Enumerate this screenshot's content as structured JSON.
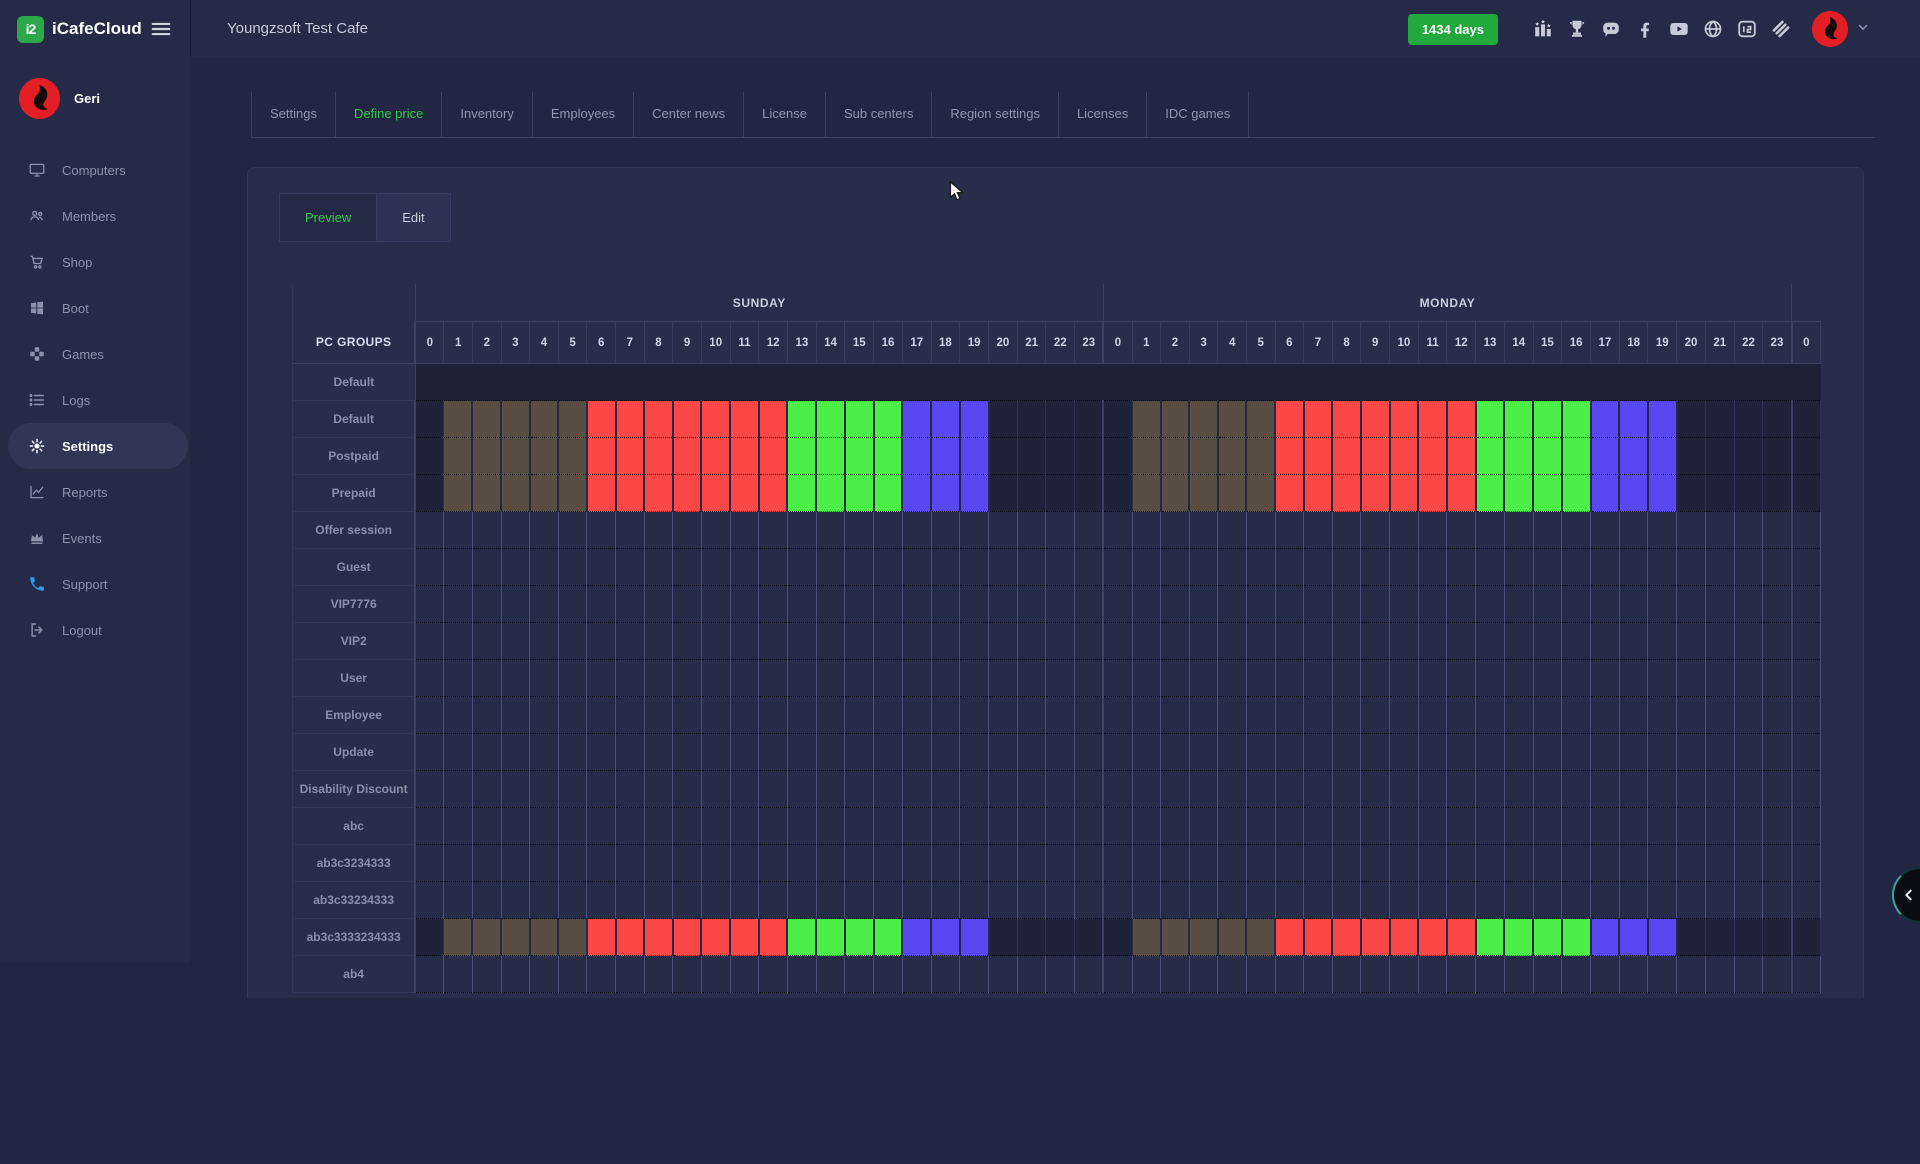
{
  "brand": {
    "name": "iCafeCloud",
    "logo_text": "i2",
    "logo_color": "#2aa84a"
  },
  "topbar": {
    "title": "Youngzsoft Test Cafe",
    "days_badge": "1434 days",
    "badge_color": "#22a93b",
    "icons": [
      "leaderboard",
      "trophy",
      "discord",
      "facebook",
      "youtube",
      "globe",
      "icafecloud-card",
      "youngzsoft"
    ],
    "user": {
      "name": "Geri"
    }
  },
  "sidebar": {
    "user": {
      "name": "Geri"
    },
    "items": [
      {
        "label": "Computers",
        "icon": "monitor",
        "active": false
      },
      {
        "label": "Members",
        "icon": "users",
        "active": false
      },
      {
        "label": "Shop",
        "icon": "cart",
        "active": false
      },
      {
        "label": "Boot",
        "icon": "windows",
        "active": false
      },
      {
        "label": "Games",
        "icon": "gamepad",
        "active": false
      },
      {
        "label": "Logs",
        "icon": "list",
        "active": false
      },
      {
        "label": "Settings",
        "icon": "gear",
        "active": true
      },
      {
        "label": "Reports",
        "icon": "chart",
        "active": false
      },
      {
        "label": "Events",
        "icon": "crown",
        "active": false
      },
      {
        "label": "Support",
        "icon": "phone",
        "active": false,
        "icon_color": "#2e9bf0"
      },
      {
        "label": "Logout",
        "icon": "logout",
        "active": false
      }
    ]
  },
  "page_tabs": {
    "items": [
      "Settings",
      "Define price",
      "Inventory",
      "Employees",
      "Center news",
      "License",
      "Sub centers",
      "Region settings",
      "Licenses",
      "IDC games"
    ],
    "active": "Define price",
    "active_color": "#2ecc40"
  },
  "subtabs": {
    "items": [
      "Preview",
      "Edit"
    ],
    "active": "Preview"
  },
  "price_table": {
    "corner_label": "PC GROUPS",
    "days": [
      "SUNDAY",
      "MONDAY"
    ],
    "hours": [
      "0",
      "1",
      "2",
      "3",
      "4",
      "5",
      "6",
      "7",
      "8",
      "9",
      "10",
      "11",
      "12",
      "13",
      "14",
      "15",
      "16",
      "17",
      "18",
      "19",
      "20",
      "21",
      "22",
      "23"
    ],
    "next_day_partial_hour": "0",
    "groups": [
      {
        "name": "Default",
        "row_style": "blackout"
      },
      {
        "name": "Default",
        "row_style": "priced"
      },
      {
        "name": "Postpaid",
        "row_style": "priced"
      },
      {
        "name": "Prepaid",
        "row_style": "priced"
      },
      {
        "name": "Offer session",
        "row_style": "empty"
      },
      {
        "name": "Guest",
        "row_style": "empty"
      },
      {
        "name": "VIP7776",
        "row_style": "empty"
      },
      {
        "name": "VIP2",
        "row_style": "empty"
      },
      {
        "name": "User",
        "row_style": "empty"
      },
      {
        "name": "Employee",
        "row_style": "empty"
      },
      {
        "name": "Update",
        "row_style": "empty"
      },
      {
        "name": "Disability Discount",
        "row_style": "empty"
      },
      {
        "name": "abc",
        "row_style": "empty"
      },
      {
        "name": "ab3c3234333",
        "row_style": "empty"
      },
      {
        "name": "ab3c33234333",
        "row_style": "empty"
      },
      {
        "name": "ab3c3333234333",
        "row_style": "priced"
      },
      {
        "name": "ab4",
        "row_style": "empty"
      }
    ],
    "priced_pattern": [
      "none",
      "brown",
      "brown",
      "brown",
      "brown",
      "brown",
      "red",
      "red",
      "red",
      "red",
      "red",
      "red",
      "red",
      "green",
      "green",
      "green",
      "green",
      "blue",
      "blue",
      "blue",
      "none",
      "none",
      "none",
      "none"
    ],
    "colors": {
      "brown": "#5a4d44",
      "red": "#fb4746",
      "green": "#4cee48",
      "blue": "#5848f1"
    }
  }
}
